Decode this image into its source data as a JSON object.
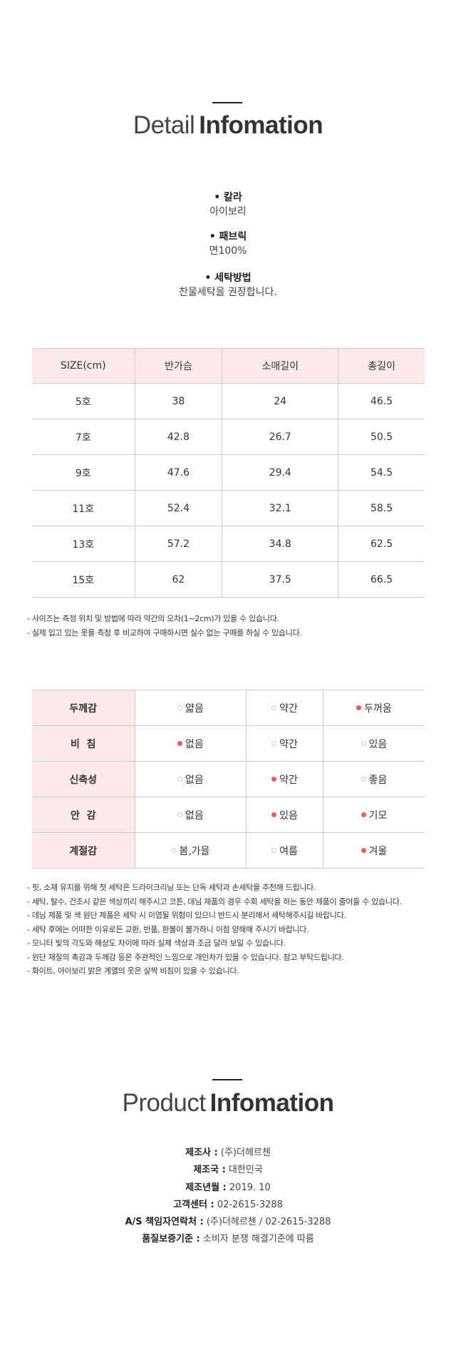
{
  "detail": {
    "title_light": "Detail",
    "title_bold": "Infomation",
    "specs": [
      {
        "label": "칼라",
        "value": "아이보리"
      },
      {
        "label": "패브릭",
        "value": "면100%"
      },
      {
        "label": "세탁방법",
        "value": "찬물세탁을 권장합니다."
      }
    ]
  },
  "size_table": {
    "headers": [
      "SIZE(cm)",
      "반가슴",
      "소매길이",
      "총길이"
    ],
    "rows": [
      [
        "5호",
        "38",
        "24",
        "46.5"
      ],
      [
        "7호",
        "42.8",
        "26.7",
        "50.5"
      ],
      [
        "9호",
        "47.6",
        "29.4",
        "54.5"
      ],
      [
        "11호",
        "52.4",
        "32.1",
        "58.5"
      ],
      [
        "13호",
        "57.2",
        "34.8",
        "62.5"
      ],
      [
        "15호",
        "62",
        "37.5",
        "66.5"
      ]
    ],
    "notes": [
      "- 사이즈는 측정 위치 및 방법에 따라 약간의 오차(1~2cm)가 있을 수 있습니다.",
      "- 실제 입고 있는 옷을 측정 후 비교하여 구매하시면 실수 없는 구매를 하실 수 있습니다."
    ]
  },
  "fabric_table": {
    "accent_color": "#f25a5a",
    "rows": [
      {
        "label": "두께감",
        "options": [
          "얇음",
          "약간",
          "두꺼움"
        ],
        "selected": [
          2
        ]
      },
      {
        "label": "비  침",
        "options": [
          "없음",
          "약간",
          "있음"
        ],
        "selected": [
          0
        ]
      },
      {
        "label": "신축성",
        "options": [
          "없음",
          "약간",
          "좋음"
        ],
        "selected": [
          1
        ]
      },
      {
        "label": "안  감",
        "options": [
          "없음",
          "있음",
          "기모"
        ],
        "selected": [
          1,
          2
        ]
      },
      {
        "label": "계절감",
        "options": [
          "봄,가을",
          "여름",
          "겨울"
        ],
        "selected": [
          2
        ]
      }
    ],
    "notes": [
      "- 핏, 소재 유지를 위해 첫 세탁은 드라이크리닝 또는 단독 세탁과 손세탁을 추천해 드립니다.",
      "- 세탁, 탈수, 건조시 같은 색상끼리 해주시고 코튼, 데님 제품의 경우 수회 세탁을 하는 동안 제품이 줄어들 수 있습니다.",
      "- 데님 제품 및 색 원단 제품은 세탁 시 이염될 위험이 있으니 반드시 분리해서 세탁해주시길 바랍니다.",
      "- 세탁 후에는 어떠한 이유로든 교환, 반품, 환불이 불가하니 이점 양해해 주시기 바랍니다.",
      "- 모니터 빛의 각도와 해상도 차이에 따라 실제 색상과 조금 달라 보일 수 있습니다.",
      "- 원단 재질의 촉감과 두께감 등은 주관적인 느낌으로 개인차가 있을 수 있습니다. 참고 부탁드립니다.",
      "- 화이트, 아이보리 밝은 계열의 옷은 살짝 비침이 있을 수 있습니다."
    ]
  },
  "product": {
    "title_light": "Product",
    "title_bold": "Infomation",
    "items": [
      {
        "label": "제조사 :",
        "value": "(주)더헤르첸"
      },
      {
        "label": "제조국 :",
        "value": "대한민국"
      },
      {
        "label": "제조년월 :",
        "value": "2019. 10"
      },
      {
        "label": "고객센터 :",
        "value": "02-2615-3288"
      },
      {
        "label": "A/S 책임자연락처 :",
        "value": "(주)더헤르첸 / 02-2615-3288"
      },
      {
        "label": "품질보증기준 :",
        "value": "소비자 분쟁 해결기준에 따름"
      }
    ]
  }
}
